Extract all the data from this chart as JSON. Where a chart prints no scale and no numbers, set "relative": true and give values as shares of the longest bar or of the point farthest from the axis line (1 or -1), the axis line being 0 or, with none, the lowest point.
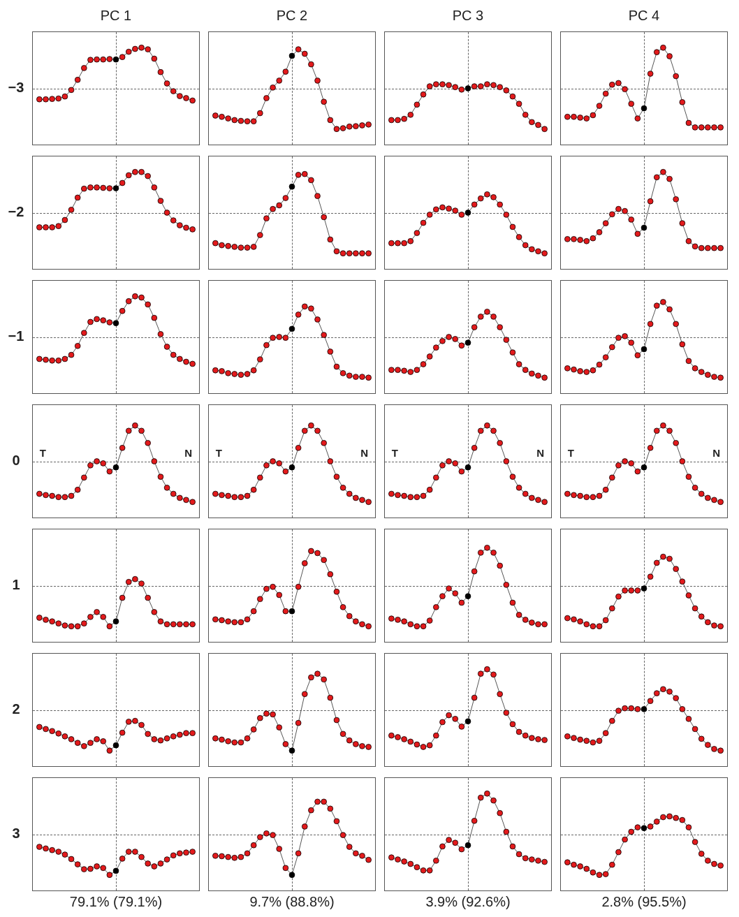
{
  "chart_data": [
    {
      "type": "line",
      "title": "PC 1",
      "ylabel": "−3",
      "relative": true,
      "marker": "circle",
      "line_style": "solid",
      "categories": [
        null,
        null,
        null,
        null,
        null,
        null,
        null,
        null,
        null,
        null,
        null,
        null,
        null,
        null,
        null,
        null,
        null,
        null,
        null,
        null,
        null,
        null,
        null,
        null,
        null
      ],
      "color": "#555555",
      "colors": [
        "#e31a1c",
        "#e31a1c",
        "#e31a1c",
        "#e31a1c",
        "#e31a1c",
        "#e31a1c",
        "#e31a1c",
        "#e31a1c",
        "#e31a1c",
        "#e31a1c",
        "#e31a1c",
        "#e31a1c",
        "#000000",
        "#e31a1c",
        "#e31a1c",
        "#e31a1c",
        "#e31a1c",
        "#e31a1c",
        "#e31a1c",
        "#e31a1c",
        "#e31a1c",
        "#e31a1c",
        "#e31a1c",
        "#e31a1c",
        "#e31a1c"
      ],
      "values": [
        -0.27,
        -0.27,
        -0.26,
        -0.25,
        -0.2,
        -0.04,
        0.21,
        0.5,
        0.7,
        0.71,
        0.71,
        0.72,
        0.71,
        0.77,
        0.9,
        0.97,
        1,
        0.96,
        0.73,
        0.4,
        0.12,
        -0.07,
        -0.19,
        -0.24,
        -0.3
      ]
    },
    {
      "type": "line",
      "title": "PC 2",
      "relative": true,
      "marker": "circle",
      "line_style": "solid",
      "categories": [
        null,
        null,
        null,
        null,
        null,
        null,
        null,
        null,
        null,
        null,
        null,
        null,
        null,
        null,
        null,
        null,
        null,
        null,
        null,
        null,
        null,
        null,
        null,
        null,
        null
      ],
      "color": "#555555",
      "colors": [
        "#e31a1c",
        "#e31a1c",
        "#e31a1c",
        "#e31a1c",
        "#e31a1c",
        "#e31a1c",
        "#e31a1c",
        "#e31a1c",
        "#e31a1c",
        "#e31a1c",
        "#e31a1c",
        "#e31a1c",
        "#000000",
        "#e31a1c",
        "#e31a1c",
        "#e31a1c",
        "#e31a1c",
        "#e31a1c",
        "#e31a1c",
        "#e31a1c",
        "#e31a1c",
        "#e31a1c",
        "#e31a1c",
        "#e31a1c",
        "#e31a1c"
      ],
      "values": [
        -0.67,
        -0.7,
        -0.74,
        -0.78,
        -0.8,
        -0.81,
        -0.81,
        -0.61,
        -0.24,
        0.02,
        0.19,
        0.41,
        0.8,
        0.96,
        0.85,
        0.59,
        0.19,
        -0.33,
        -0.78,
        -1,
        -0.98,
        -0.94,
        -0.93,
        -0.91,
        -0.89
      ]
    },
    {
      "type": "line",
      "title": "PC 3",
      "relative": true,
      "marker": "circle",
      "line_style": "solid",
      "categories": [
        null,
        null,
        null,
        null,
        null,
        null,
        null,
        null,
        null,
        null,
        null,
        null,
        null,
        null,
        null,
        null,
        null,
        null,
        null,
        null,
        null,
        null,
        null,
        null,
        null
      ],
      "color": "#555555",
      "colors": [
        "#e31a1c",
        "#e31a1c",
        "#e31a1c",
        "#e31a1c",
        "#e31a1c",
        "#e31a1c",
        "#e31a1c",
        "#e31a1c",
        "#e31a1c",
        "#e31a1c",
        "#e31a1c",
        "#e31a1c",
        "#000000",
        "#e31a1c",
        "#e31a1c",
        "#e31a1c",
        "#e31a1c",
        "#e31a1c",
        "#e31a1c",
        "#e31a1c",
        "#e31a1c",
        "#e31a1c",
        "#e31a1c",
        "#e31a1c",
        "#e31a1c"
      ],
      "values": [
        -0.78,
        -0.78,
        -0.75,
        -0.65,
        -0.4,
        -0.15,
        0.05,
        0.1,
        0.1,
        0.08,
        0.03,
        -0.03,
        0,
        0.05,
        0.05,
        0.1,
        0.08,
        0.03,
        -0.05,
        -0.2,
        -0.38,
        -0.65,
        -0.83,
        -0.9,
        -1
      ]
    },
    {
      "type": "line",
      "title": "PC 4",
      "relative": true,
      "marker": "circle",
      "line_style": "solid",
      "categories": [
        null,
        null,
        null,
        null,
        null,
        null,
        null,
        null,
        null,
        null,
        null,
        null,
        null,
        null,
        null,
        null,
        null,
        null,
        null,
        null,
        null,
        null,
        null,
        null,
        null
      ],
      "color": "#555555",
      "colors": [
        "#e31a1c",
        "#e31a1c",
        "#e31a1c",
        "#e31a1c",
        "#e31a1c",
        "#e31a1c",
        "#e31a1c",
        "#e31a1c",
        "#e31a1c",
        "#e31a1c",
        "#e31a1c",
        "#e31a1c",
        "#000000",
        "#e31a1c",
        "#e31a1c",
        "#e31a1c",
        "#e31a1c",
        "#e31a1c",
        "#e31a1c",
        "#e31a1c",
        "#e31a1c",
        "#e31a1c",
        "#e31a1c",
        "#e31a1c",
        "#e31a1c"
      ],
      "values": [
        -0.7,
        -0.7,
        -0.72,
        -0.74,
        -0.66,
        -0.43,
        -0.13,
        0.09,
        0.13,
        -0.02,
        -0.38,
        -0.74,
        -0.49,
        0.36,
        0.89,
        1,
        0.79,
        0.3,
        -0.34,
        -0.85,
        -0.96,
        -0.96,
        -0.96,
        -0.96,
        -0.96
      ]
    },
    {
      "type": "line",
      "ylabel": "−2",
      "relative": true,
      "marker": "circle",
      "line_style": "solid",
      "categories": [
        null,
        null,
        null,
        null,
        null,
        null,
        null,
        null,
        null,
        null,
        null,
        null,
        null,
        null,
        null,
        null,
        null,
        null,
        null,
        null,
        null,
        null,
        null,
        null,
        null
      ],
      "color": "#555555",
      "colors": [
        "#e31a1c",
        "#e31a1c",
        "#e31a1c",
        "#e31a1c",
        "#e31a1c",
        "#e31a1c",
        "#e31a1c",
        "#e31a1c",
        "#e31a1c",
        "#e31a1c",
        "#e31a1c",
        "#e31a1c",
        "#000000",
        "#e31a1c",
        "#e31a1c",
        "#e31a1c",
        "#e31a1c",
        "#e31a1c",
        "#e31a1c",
        "#e31a1c",
        "#e31a1c",
        "#e31a1c",
        "#e31a1c",
        "#e31a1c",
        "#e31a1c"
      ],
      "values": [
        -0.36,
        -0.36,
        -0.36,
        -0.33,
        -0.18,
        0.07,
        0.37,
        0.59,
        0.62,
        0.62,
        0.61,
        0.6,
        0.6,
        0.73,
        0.92,
        1,
        1,
        0.9,
        0.62,
        0.29,
        0,
        -0.19,
        -0.31,
        -0.37,
        -0.41
      ]
    },
    {
      "type": "line",
      "relative": true,
      "marker": "circle",
      "line_style": "solid",
      "categories": [
        null,
        null,
        null,
        null,
        null,
        null,
        null,
        null,
        null,
        null,
        null,
        null,
        null,
        null,
        null,
        null,
        null,
        null,
        null,
        null,
        null,
        null,
        null,
        null,
        null
      ],
      "color": "#555555",
      "colors": [
        "#e31a1c",
        "#e31a1c",
        "#e31a1c",
        "#e31a1c",
        "#e31a1c",
        "#e31a1c",
        "#e31a1c",
        "#e31a1c",
        "#e31a1c",
        "#e31a1c",
        "#e31a1c",
        "#e31a1c",
        "#000000",
        "#e31a1c",
        "#e31a1c",
        "#e31a1c",
        "#e31a1c",
        "#e31a1c",
        "#e31a1c",
        "#e31a1c",
        "#e31a1c",
        "#e31a1c",
        "#e31a1c",
        "#e31a1c",
        "#e31a1c"
      ],
      "values": [
        -0.75,
        -0.8,
        -0.82,
        -0.84,
        -0.86,
        -0.86,
        -0.84,
        -0.55,
        -0.14,
        0.09,
        0.18,
        0.36,
        0.64,
        0.93,
        0.95,
        0.8,
        0.41,
        -0.11,
        -0.66,
        -0.95,
        -1,
        -1,
        -1,
        -1,
        -1
      ]
    },
    {
      "type": "line",
      "relative": true,
      "marker": "circle",
      "line_style": "solid",
      "categories": [
        null,
        null,
        null,
        null,
        null,
        null,
        null,
        null,
        null,
        null,
        null,
        null,
        null,
        null,
        null,
        null,
        null,
        null,
        null,
        null,
        null,
        null,
        null,
        null,
        null
      ],
      "color": "#555555",
      "colors": [
        "#e31a1c",
        "#e31a1c",
        "#e31a1c",
        "#e31a1c",
        "#e31a1c",
        "#e31a1c",
        "#e31a1c",
        "#e31a1c",
        "#e31a1c",
        "#e31a1c",
        "#e31a1c",
        "#e31a1c",
        "#000000",
        "#e31a1c",
        "#e31a1c",
        "#e31a1c",
        "#e31a1c",
        "#e31a1c",
        "#e31a1c",
        "#e31a1c",
        "#e31a1c",
        "#e31a1c",
        "#e31a1c",
        "#e31a1c",
        "#e31a1c"
      ],
      "values": [
        -0.75,
        -0.75,
        -0.75,
        -0.7,
        -0.5,
        -0.25,
        -0.05,
        0.08,
        0.13,
        0.1,
        0.05,
        -0.05,
        0,
        0.2,
        0.35,
        0.45,
        0.38,
        0.2,
        -0.05,
        -0.35,
        -0.6,
        -0.8,
        -0.9,
        -0.95,
        -1
      ]
    },
    {
      "type": "line",
      "relative": true,
      "marker": "circle",
      "line_style": "solid",
      "categories": [
        null,
        null,
        null,
        null,
        null,
        null,
        null,
        null,
        null,
        null,
        null,
        null,
        null,
        null,
        null,
        null,
        null,
        null,
        null,
        null,
        null,
        null,
        null,
        null,
        null
      ],
      "color": "#555555",
      "colors": [
        "#e31a1c",
        "#e31a1c",
        "#e31a1c",
        "#e31a1c",
        "#e31a1c",
        "#e31a1c",
        "#e31a1c",
        "#e31a1c",
        "#e31a1c",
        "#e31a1c",
        "#e31a1c",
        "#e31a1c",
        "#000000",
        "#e31a1c",
        "#e31a1c",
        "#e31a1c",
        "#e31a1c",
        "#e31a1c",
        "#e31a1c",
        "#e31a1c",
        "#e31a1c",
        "#e31a1c",
        "#e31a1c",
        "#e31a1c",
        "#e31a1c"
      ],
      "values": [
        -0.65,
        -0.65,
        -0.67,
        -0.7,
        -0.63,
        -0.48,
        -0.26,
        -0.04,
        0.09,
        0.04,
        -0.17,
        -0.52,
        -0.37,
        0.28,
        0.87,
        1,
        0.83,
        0.33,
        -0.26,
        -0.7,
        -0.83,
        -0.87,
        -0.87,
        -0.87,
        -0.87
      ]
    },
    {
      "type": "line",
      "ylabel": "−1",
      "relative": true,
      "marker": "circle",
      "line_style": "solid",
      "categories": [
        null,
        null,
        null,
        null,
        null,
        null,
        null,
        null,
        null,
        null,
        null,
        null,
        null,
        null,
        null,
        null,
        null,
        null,
        null,
        null,
        null,
        null,
        null,
        null,
        null
      ],
      "color": "#555555",
      "colors": [
        "#e31a1c",
        "#e31a1c",
        "#e31a1c",
        "#e31a1c",
        "#e31a1c",
        "#e31a1c",
        "#e31a1c",
        "#e31a1c",
        "#e31a1c",
        "#e31a1c",
        "#e31a1c",
        "#e31a1c",
        "#000000",
        "#e31a1c",
        "#e31a1c",
        "#e31a1c",
        "#e31a1c",
        "#e31a1c",
        "#e31a1c",
        "#e31a1c",
        "#e31a1c",
        "#e31a1c",
        "#e31a1c",
        "#e31a1c",
        "#e31a1c"
      ],
      "values": [
        -0.54,
        -0.56,
        -0.58,
        -0.58,
        -0.54,
        -0.44,
        -0.22,
        0.1,
        0.37,
        0.44,
        0.41,
        0.36,
        0.34,
        0.64,
        0.88,
        1,
        0.97,
        0.8,
        0.47,
        0.07,
        -0.24,
        -0.44,
        -0.54,
        -0.61,
        -0.66
      ]
    },
    {
      "type": "line",
      "relative": true,
      "marker": "circle",
      "line_style": "solid",
      "categories": [
        null,
        null,
        null,
        null,
        null,
        null,
        null,
        null,
        null,
        null,
        null,
        null,
        null,
        null,
        null,
        null,
        null,
        null,
        null,
        null,
        null,
        null,
        null,
        null,
        null
      ],
      "color": "#555555",
      "colors": [
        "#e31a1c",
        "#e31a1c",
        "#e31a1c",
        "#e31a1c",
        "#e31a1c",
        "#e31a1c",
        "#e31a1c",
        "#e31a1c",
        "#e31a1c",
        "#e31a1c",
        "#e31a1c",
        "#e31a1c",
        "#000000",
        "#e31a1c",
        "#e31a1c",
        "#e31a1c",
        "#e31a1c",
        "#e31a1c",
        "#e31a1c",
        "#e31a1c",
        "#e31a1c",
        "#e31a1c",
        "#e31a1c",
        "#e31a1c",
        "#e31a1c"
      ],
      "values": [
        -0.82,
        -0.84,
        -0.89,
        -0.91,
        -0.93,
        -0.91,
        -0.82,
        -0.55,
        -0.2,
        -0.02,
        0,
        -0.02,
        0.2,
        0.55,
        0.75,
        0.7,
        0.43,
        0.05,
        -0.36,
        -0.73,
        -0.89,
        -0.95,
        -0.98,
        -0.98,
        -1
      ]
    },
    {
      "type": "line",
      "relative": true,
      "marker": "circle",
      "line_style": "solid",
      "categories": [
        null,
        null,
        null,
        null,
        null,
        null,
        null,
        null,
        null,
        null,
        null,
        null,
        null,
        null,
        null,
        null,
        null,
        null,
        null,
        null,
        null,
        null,
        null,
        null,
        null
      ],
      "color": "#555555",
      "colors": [
        "#e31a1c",
        "#e31a1c",
        "#e31a1c",
        "#e31a1c",
        "#e31a1c",
        "#e31a1c",
        "#e31a1c",
        "#e31a1c",
        "#e31a1c",
        "#e31a1c",
        "#e31a1c",
        "#e31a1c",
        "#000000",
        "#e31a1c",
        "#e31a1c",
        "#e31a1c",
        "#e31a1c",
        "#e31a1c",
        "#e31a1c",
        "#e31a1c",
        "#e31a1c",
        "#e31a1c",
        "#e31a1c",
        "#e31a1c",
        "#e31a1c"
      ],
      "values": [
        -0.81,
        -0.81,
        -0.83,
        -0.86,
        -0.81,
        -0.67,
        -0.48,
        -0.26,
        -0.1,
        0,
        -0.05,
        -0.21,
        -0.14,
        0.24,
        0.5,
        0.62,
        0.5,
        0.24,
        -0.07,
        -0.38,
        -0.67,
        -0.81,
        -0.9,
        -0.95,
        -1
      ]
    },
    {
      "type": "line",
      "relative": true,
      "marker": "circle",
      "line_style": "solid",
      "categories": [
        null,
        null,
        null,
        null,
        null,
        null,
        null,
        null,
        null,
        null,
        null,
        null,
        null,
        null,
        null,
        null,
        null,
        null,
        null,
        null,
        null,
        null,
        null,
        null,
        null
      ],
      "color": "#555555",
      "colors": [
        "#e31a1c",
        "#e31a1c",
        "#e31a1c",
        "#e31a1c",
        "#e31a1c",
        "#e31a1c",
        "#e31a1c",
        "#e31a1c",
        "#e31a1c",
        "#e31a1c",
        "#e31a1c",
        "#e31a1c",
        "#000000",
        "#e31a1c",
        "#e31a1c",
        "#e31a1c",
        "#e31a1c",
        "#e31a1c",
        "#e31a1c",
        "#e31a1c",
        "#e31a1c",
        "#e31a1c",
        "#e31a1c",
        "#e31a1c",
        "#e31a1c"
      ],
      "values": [
        -0.77,
        -0.8,
        -0.84,
        -0.86,
        -0.82,
        -0.68,
        -0.5,
        -0.25,
        -0.02,
        0.02,
        -0.14,
        -0.45,
        -0.3,
        0.32,
        0.77,
        0.86,
        0.68,
        0.32,
        -0.18,
        -0.59,
        -0.77,
        -0.86,
        -0.93,
        -0.98,
        -1
      ]
    },
    {
      "type": "line",
      "ylabel": "0",
      "annotations": [
        "T",
        "N"
      ],
      "relative": true,
      "marker": "circle",
      "line_style": "solid",
      "categories": [
        null,
        null,
        null,
        null,
        null,
        null,
        null,
        null,
        null,
        null,
        null,
        null,
        null,
        null,
        null,
        null,
        null,
        null,
        null,
        null,
        null,
        null,
        null,
        null,
        null
      ],
      "color": "#555555",
      "colors": [
        "#e31a1c",
        "#e31a1c",
        "#e31a1c",
        "#e31a1c",
        "#e31a1c",
        "#e31a1c",
        "#e31a1c",
        "#e31a1c",
        "#e31a1c",
        "#e31a1c",
        "#e31a1c",
        "#e31a1c",
        "#000000",
        "#e31a1c",
        "#e31a1c",
        "#e31a1c",
        "#e31a1c",
        "#e31a1c",
        "#e31a1c",
        "#e31a1c",
        "#e31a1c",
        "#e31a1c",
        "#e31a1c",
        "#e31a1c",
        "#e31a1c"
      ],
      "values": [
        -0.8,
        -0.83,
        -0.85,
        -0.88,
        -0.88,
        -0.85,
        -0.7,
        -0.4,
        -0.1,
        0,
        -0.05,
        -0.25,
        -0.15,
        0.33,
        0.75,
        0.88,
        0.75,
        0.45,
        0,
        -0.38,
        -0.65,
        -0.8,
        -0.9,
        -0.95,
        -1
      ]
    },
    {
      "type": "line",
      "annotations": [
        "T",
        "N"
      ],
      "relative": true,
      "marker": "circle",
      "line_style": "solid",
      "categories": [
        null,
        null,
        null,
        null,
        null,
        null,
        null,
        null,
        null,
        null,
        null,
        null,
        null,
        null,
        null,
        null,
        null,
        null,
        null,
        null,
        null,
        null,
        null,
        null,
        null
      ],
      "color": "#555555",
      "colors": [
        "#e31a1c",
        "#e31a1c",
        "#e31a1c",
        "#e31a1c",
        "#e31a1c",
        "#e31a1c",
        "#e31a1c",
        "#e31a1c",
        "#e31a1c",
        "#e31a1c",
        "#e31a1c",
        "#e31a1c",
        "#000000",
        "#e31a1c",
        "#e31a1c",
        "#e31a1c",
        "#e31a1c",
        "#e31a1c",
        "#e31a1c",
        "#e31a1c",
        "#e31a1c",
        "#e31a1c",
        "#e31a1c",
        "#e31a1c",
        "#e31a1c"
      ],
      "values": [
        -0.8,
        -0.83,
        -0.85,
        -0.88,
        -0.88,
        -0.85,
        -0.7,
        -0.4,
        -0.1,
        0,
        -0.05,
        -0.25,
        -0.15,
        0.33,
        0.75,
        0.88,
        0.75,
        0.45,
        0,
        -0.38,
        -0.65,
        -0.8,
        -0.9,
        -0.95,
        -1
      ]
    },
    {
      "type": "line",
      "annotations": [
        "T",
        "N"
      ],
      "relative": true,
      "marker": "circle",
      "line_style": "solid",
      "categories": [
        null,
        null,
        null,
        null,
        null,
        null,
        null,
        null,
        null,
        null,
        null,
        null,
        null,
        null,
        null,
        null,
        null,
        null,
        null,
        null,
        null,
        null,
        null,
        null,
        null
      ],
      "color": "#555555",
      "colors": [
        "#e31a1c",
        "#e31a1c",
        "#e31a1c",
        "#e31a1c",
        "#e31a1c",
        "#e31a1c",
        "#e31a1c",
        "#e31a1c",
        "#e31a1c",
        "#e31a1c",
        "#e31a1c",
        "#e31a1c",
        "#000000",
        "#e31a1c",
        "#e31a1c",
        "#e31a1c",
        "#e31a1c",
        "#e31a1c",
        "#e31a1c",
        "#e31a1c",
        "#e31a1c",
        "#e31a1c",
        "#e31a1c",
        "#e31a1c",
        "#e31a1c"
      ],
      "values": [
        -0.8,
        -0.83,
        -0.85,
        -0.88,
        -0.88,
        -0.85,
        -0.7,
        -0.4,
        -0.1,
        0,
        -0.05,
        -0.25,
        -0.15,
        0.33,
        0.75,
        0.88,
        0.75,
        0.45,
        0,
        -0.38,
        -0.65,
        -0.8,
        -0.9,
        -0.95,
        -1
      ]
    },
    {
      "type": "line",
      "annotations": [
        "T",
        "N"
      ],
      "relative": true,
      "marker": "circle",
      "line_style": "solid",
      "categories": [
        null,
        null,
        null,
        null,
        null,
        null,
        null,
        null,
        null,
        null,
        null,
        null,
        null,
        null,
        null,
        null,
        null,
        null,
        null,
        null,
        null,
        null,
        null,
        null,
        null
      ],
      "color": "#555555",
      "colors": [
        "#e31a1c",
        "#e31a1c",
        "#e31a1c",
        "#e31a1c",
        "#e31a1c",
        "#e31a1c",
        "#e31a1c",
        "#e31a1c",
        "#e31a1c",
        "#e31a1c",
        "#e31a1c",
        "#e31a1c",
        "#000000",
        "#e31a1c",
        "#e31a1c",
        "#e31a1c",
        "#e31a1c",
        "#e31a1c",
        "#e31a1c",
        "#e31a1c",
        "#e31a1c",
        "#e31a1c",
        "#e31a1c",
        "#e31a1c",
        "#e31a1c"
      ],
      "values": [
        -0.8,
        -0.83,
        -0.85,
        -0.88,
        -0.88,
        -0.85,
        -0.7,
        -0.4,
        -0.1,
        0,
        -0.05,
        -0.25,
        -0.15,
        0.33,
        0.75,
        0.88,
        0.75,
        0.45,
        0,
        -0.38,
        -0.65,
        -0.8,
        -0.9,
        -0.95,
        -1
      ]
    },
    {
      "type": "line",
      "ylabel": "1",
      "relative": true,
      "marker": "circle",
      "line_style": "solid",
      "categories": [
        null,
        null,
        null,
        null,
        null,
        null,
        null,
        null,
        null,
        null,
        null,
        null,
        null,
        null,
        null,
        null,
        null,
        null,
        null,
        null,
        null,
        null,
        null,
        null,
        null
      ],
      "color": "#555555",
      "colors": [
        "#e31a1c",
        "#e31a1c",
        "#e31a1c",
        "#e31a1c",
        "#e31a1c",
        "#e31a1c",
        "#e31a1c",
        "#e31a1c",
        "#e31a1c",
        "#e31a1c",
        "#e31a1c",
        "#e31a1c",
        "#000000",
        "#e31a1c",
        "#e31a1c",
        "#e31a1c",
        "#e31a1c",
        "#e31a1c",
        "#e31a1c",
        "#e31a1c",
        "#e31a1c",
        "#e31a1c",
        "#e31a1c",
        "#e31a1c",
        "#e31a1c"
      ],
      "values": [
        -0.79,
        -0.84,
        -0.88,
        -0.93,
        -0.98,
        -1,
        -1,
        -0.93,
        -0.77,
        -0.65,
        -0.77,
        -1,
        -0.88,
        -0.3,
        0.09,
        0.16,
        0.05,
        -0.3,
        -0.65,
        -0.88,
        -0.95,
        -0.95,
        -0.95,
        -0.95,
        -0.95
      ]
    },
    {
      "type": "line",
      "relative": true,
      "marker": "circle",
      "line_style": "solid",
      "categories": [
        null,
        null,
        null,
        null,
        null,
        null,
        null,
        null,
        null,
        null,
        null,
        null,
        null,
        null,
        null,
        null,
        null,
        null,
        null,
        null,
        null,
        null,
        null,
        null,
        null
      ],
      "color": "#555555",
      "colors": [
        "#e31a1c",
        "#e31a1c",
        "#e31a1c",
        "#e31a1c",
        "#e31a1c",
        "#e31a1c",
        "#e31a1c",
        "#e31a1c",
        "#e31a1c",
        "#e31a1c",
        "#e31a1c",
        "#e31a1c",
        "#000000",
        "#e31a1c",
        "#e31a1c",
        "#e31a1c",
        "#e31a1c",
        "#e31a1c",
        "#e31a1c",
        "#e31a1c",
        "#e31a1c",
        "#e31a1c",
        "#e31a1c",
        "#e31a1c",
        "#e31a1c"
      ],
      "values": [
        -0.83,
        -0.85,
        -0.88,
        -0.9,
        -0.9,
        -0.83,
        -0.63,
        -0.33,
        -0.08,
        -0.03,
        -0.23,
        -0.63,
        -0.63,
        -0.03,
        0.55,
        0.85,
        0.8,
        0.63,
        0.28,
        -0.15,
        -0.53,
        -0.75,
        -0.88,
        -0.95,
        -1
      ]
    },
    {
      "type": "line",
      "relative": true,
      "marker": "circle",
      "line_style": "solid",
      "categories": [
        null,
        null,
        null,
        null,
        null,
        null,
        null,
        null,
        null,
        null,
        null,
        null,
        null,
        null,
        null,
        null,
        null,
        null,
        null,
        null,
        null,
        null,
        null,
        null,
        null
      ],
      "color": "#555555",
      "colors": [
        "#e31a1c",
        "#e31a1c",
        "#e31a1c",
        "#e31a1c",
        "#e31a1c",
        "#e31a1c",
        "#e31a1c",
        "#e31a1c",
        "#e31a1c",
        "#e31a1c",
        "#e31a1c",
        "#e31a1c",
        "#000000",
        "#e31a1c",
        "#e31a1c",
        "#e31a1c",
        "#e31a1c",
        "#e31a1c",
        "#e31a1c",
        "#e31a1c",
        "#e31a1c",
        "#e31a1c",
        "#e31a1c",
        "#e31a1c",
        "#e31a1c"
      ],
      "values": [
        -0.81,
        -0.84,
        -0.88,
        -0.95,
        -1,
        -1,
        -0.86,
        -0.53,
        -0.26,
        -0.07,
        -0.19,
        -0.42,
        -0.26,
        0.35,
        0.81,
        0.93,
        0.81,
        0.49,
        0.02,
        -0.42,
        -0.72,
        -0.84,
        -0.91,
        -0.95,
        -0.95
      ]
    },
    {
      "type": "line",
      "relative": true,
      "marker": "circle",
      "line_style": "solid",
      "categories": [
        null,
        null,
        null,
        null,
        null,
        null,
        null,
        null,
        null,
        null,
        null,
        null,
        null,
        null,
        null,
        null,
        null,
        null,
        null,
        null,
        null,
        null,
        null,
        null,
        null
      ],
      "color": "#555555",
      "colors": [
        "#e31a1c",
        "#e31a1c",
        "#e31a1c",
        "#e31a1c",
        "#e31a1c",
        "#e31a1c",
        "#e31a1c",
        "#e31a1c",
        "#e31a1c",
        "#e31a1c",
        "#e31a1c",
        "#e31a1c",
        "#000000",
        "#e31a1c",
        "#e31a1c",
        "#e31a1c",
        "#e31a1c",
        "#e31a1c",
        "#e31a1c",
        "#e31a1c",
        "#e31a1c",
        "#e31a1c",
        "#e31a1c",
        "#e31a1c",
        "#e31a1c"
      ],
      "values": [
        -0.8,
        -0.83,
        -0.88,
        -0.95,
        -1,
        -1,
        -0.85,
        -0.56,
        -0.27,
        -0.12,
        -0.12,
        -0.12,
        -0.07,
        0.22,
        0.56,
        0.71,
        0.66,
        0.41,
        0.1,
        -0.24,
        -0.56,
        -0.76,
        -0.9,
        -0.98,
        -1
      ]
    },
    {
      "type": "line",
      "ylabel": "2",
      "relative": true,
      "marker": "circle",
      "line_style": "solid",
      "categories": [
        null,
        null,
        null,
        null,
        null,
        null,
        null,
        null,
        null,
        null,
        null,
        null,
        null,
        null,
        null,
        null,
        null,
        null,
        null,
        null,
        null,
        null,
        null,
        null,
        null
      ],
      "color": "#555555",
      "colors": [
        "#e31a1c",
        "#e31a1c",
        "#e31a1c",
        "#e31a1c",
        "#e31a1c",
        "#e31a1c",
        "#e31a1c",
        "#e31a1c",
        "#e31a1c",
        "#e31a1c",
        "#e31a1c",
        "#e31a1c",
        "#000000",
        "#e31a1c",
        "#e31a1c",
        "#e31a1c",
        "#e31a1c",
        "#e31a1c",
        "#e31a1c",
        "#e31a1c",
        "#e31a1c",
        "#e31a1c",
        "#e31a1c",
        "#e31a1c",
        "#e31a1c"
      ],
      "values": [
        -0.42,
        -0.47,
        -0.52,
        -0.58,
        -0.65,
        -0.72,
        -0.81,
        -0.89,
        -0.81,
        -0.72,
        -0.77,
        -1,
        -0.87,
        -0.56,
        -0.29,
        -0.27,
        -0.37,
        -0.59,
        -0.72,
        -0.75,
        -0.7,
        -0.65,
        -0.61,
        -0.57,
        -0.57
      ]
    },
    {
      "type": "line",
      "relative": true,
      "marker": "circle",
      "line_style": "solid",
      "categories": [
        null,
        null,
        null,
        null,
        null,
        null,
        null,
        null,
        null,
        null,
        null,
        null,
        null,
        null,
        null,
        null,
        null,
        null,
        null,
        null,
        null,
        null,
        null,
        null,
        null
      ],
      "color": "#555555",
      "colors": [
        "#e31a1c",
        "#e31a1c",
        "#e31a1c",
        "#e31a1c",
        "#e31a1c",
        "#e31a1c",
        "#e31a1c",
        "#e31a1c",
        "#e31a1c",
        "#e31a1c",
        "#e31a1c",
        "#e31a1c",
        "#000000",
        "#e31a1c",
        "#e31a1c",
        "#e31a1c",
        "#e31a1c",
        "#e31a1c",
        "#e31a1c",
        "#e31a1c",
        "#e31a1c",
        "#e31a1c",
        "#e31a1c",
        "#e31a1c",
        "#e31a1c"
      ],
      "values": [
        -0.7,
        -0.73,
        -0.77,
        -0.8,
        -0.8,
        -0.7,
        -0.48,
        -0.2,
        -0.09,
        -0.11,
        -0.43,
        -0.84,
        -1,
        -0.32,
        0.39,
        0.8,
        0.89,
        0.75,
        0.3,
        -0.25,
        -0.59,
        -0.75,
        -0.84,
        -0.89,
        -0.91
      ]
    },
    {
      "type": "line",
      "relative": true,
      "marker": "circle",
      "line_style": "solid",
      "categories": [
        null,
        null,
        null,
        null,
        null,
        null,
        null,
        null,
        null,
        null,
        null,
        null,
        null,
        null,
        null,
        null,
        null,
        null,
        null,
        null,
        null,
        null,
        null,
        null,
        null
      ],
      "color": "#555555",
      "colors": [
        "#e31a1c",
        "#e31a1c",
        "#e31a1c",
        "#e31a1c",
        "#e31a1c",
        "#e31a1c",
        "#e31a1c",
        "#e31a1c",
        "#e31a1c",
        "#e31a1c",
        "#e31a1c",
        "#e31a1c",
        "#000000",
        "#e31a1c",
        "#e31a1c",
        "#e31a1c",
        "#e31a1c",
        "#e31a1c",
        "#e31a1c",
        "#e31a1c",
        "#e31a1c",
        "#e31a1c",
        "#e31a1c",
        "#e31a1c",
        "#e31a1c"
      ],
      "values": [
        -0.63,
        -0.67,
        -0.72,
        -0.78,
        -0.85,
        -0.91,
        -0.87,
        -0.63,
        -0.3,
        -0.13,
        -0.22,
        -0.41,
        -0.28,
        0.3,
        0.89,
        1,
        0.87,
        0.39,
        -0.07,
        -0.35,
        -0.54,
        -0.63,
        -0.69,
        -0.72,
        -0.74
      ]
    },
    {
      "type": "line",
      "relative": true,
      "marker": "circle",
      "line_style": "solid",
      "categories": [
        null,
        null,
        null,
        null,
        null,
        null,
        null,
        null,
        null,
        null,
        null,
        null,
        null,
        null,
        null,
        null,
        null,
        null,
        null,
        null,
        null,
        null,
        null,
        null,
        null
      ],
      "color": "#555555",
      "colors": [
        "#e31a1c",
        "#e31a1c",
        "#e31a1c",
        "#e31a1c",
        "#e31a1c",
        "#e31a1c",
        "#e31a1c",
        "#e31a1c",
        "#e31a1c",
        "#e31a1c",
        "#e31a1c",
        "#e31a1c",
        "#000000",
        "#e31a1c",
        "#e31a1c",
        "#e31a1c",
        "#e31a1c",
        "#e31a1c",
        "#e31a1c",
        "#e31a1c",
        "#e31a1c",
        "#e31a1c",
        "#e31a1c",
        "#e31a1c",
        "#e31a1c"
      ],
      "values": [
        -0.65,
        -0.69,
        -0.73,
        -0.76,
        -0.8,
        -0.76,
        -0.57,
        -0.27,
        -0.02,
        0.04,
        0.04,
        0.02,
        0.02,
        0.22,
        0.41,
        0.51,
        0.45,
        0.29,
        0.02,
        -0.22,
        -0.47,
        -0.71,
        -0.86,
        -0.96,
        -1
      ]
    },
    {
      "type": "line",
      "ylabel": "3",
      "xlabel": "79.1% (79.1%)",
      "relative": true,
      "marker": "circle",
      "line_style": "solid",
      "categories": [
        null,
        null,
        null,
        null,
        null,
        null,
        null,
        null,
        null,
        null,
        null,
        null,
        null,
        null,
        null,
        null,
        null,
        null,
        null,
        null,
        null,
        null,
        null,
        null,
        null
      ],
      "color": "#555555",
      "colors": [
        "#e31a1c",
        "#e31a1c",
        "#e31a1c",
        "#e31a1c",
        "#e31a1c",
        "#e31a1c",
        "#e31a1c",
        "#e31a1c",
        "#e31a1c",
        "#e31a1c",
        "#e31a1c",
        "#e31a1c",
        "#000000",
        "#e31a1c",
        "#e31a1c",
        "#e31a1c",
        "#e31a1c",
        "#e31a1c",
        "#e31a1c",
        "#e31a1c",
        "#e31a1c",
        "#e31a1c",
        "#e31a1c",
        "#e31a1c",
        "#e31a1c"
      ],
      "values": [
        -0.31,
        -0.35,
        -0.39,
        -0.43,
        -0.5,
        -0.61,
        -0.74,
        -0.86,
        -0.85,
        -0.79,
        -0.83,
        -1,
        -0.9,
        -0.6,
        -0.43,
        -0.43,
        -0.56,
        -0.72,
        -0.79,
        -0.72,
        -0.62,
        -0.52,
        -0.47,
        -0.45,
        -0.43
      ]
    },
    {
      "type": "line",
      "xlabel": "9.7% (88.8%)",
      "relative": true,
      "marker": "circle",
      "line_style": "solid",
      "categories": [
        null,
        null,
        null,
        null,
        null,
        null,
        null,
        null,
        null,
        null,
        null,
        null,
        null,
        null,
        null,
        null,
        null,
        null,
        null,
        null,
        null,
        null,
        null,
        null,
        null
      ],
      "color": "#555555",
      "colors": [
        "#e31a1c",
        "#e31a1c",
        "#e31a1c",
        "#e31a1c",
        "#e31a1c",
        "#e31a1c",
        "#e31a1c",
        "#e31a1c",
        "#e31a1c",
        "#e31a1c",
        "#e31a1c",
        "#e31a1c",
        "#000000",
        "#e31a1c",
        "#e31a1c",
        "#e31a1c",
        "#e31a1c",
        "#e31a1c",
        "#e31a1c",
        "#e31a1c",
        "#e31a1c",
        "#e31a1c",
        "#e31a1c",
        "#e31a1c",
        "#e31a1c"
      ],
      "values": [
        -0.53,
        -0.54,
        -0.56,
        -0.58,
        -0.56,
        -0.47,
        -0.27,
        -0.07,
        0.02,
        -0.02,
        -0.36,
        -0.83,
        -1,
        -0.47,
        0.19,
        0.59,
        0.8,
        0.8,
        0.63,
        0.32,
        -0.02,
        -0.31,
        -0.47,
        -0.53,
        -0.63
      ]
    },
    {
      "type": "line",
      "xlabel": "3.9% (92.6%)",
      "relative": true,
      "marker": "circle",
      "line_style": "solid",
      "categories": [
        null,
        null,
        null,
        null,
        null,
        null,
        null,
        null,
        null,
        null,
        null,
        null,
        null,
        null,
        null,
        null,
        null,
        null,
        null,
        null,
        null,
        null,
        null,
        null,
        null
      ],
      "color": "#555555",
      "colors": [
        "#e31a1c",
        "#e31a1c",
        "#e31a1c",
        "#e31a1c",
        "#e31a1c",
        "#e31a1c",
        "#e31a1c",
        "#e31a1c",
        "#e31a1c",
        "#e31a1c",
        "#e31a1c",
        "#e31a1c",
        "#000000",
        "#e31a1c",
        "#e31a1c",
        "#e31a1c",
        "#e31a1c",
        "#e31a1c",
        "#e31a1c",
        "#e31a1c",
        "#e31a1c",
        "#e31a1c",
        "#e31a1c",
        "#e31a1c",
        "#e31a1c"
      ],
      "values": [
        -0.57,
        -0.62,
        -0.67,
        -0.73,
        -0.81,
        -0.89,
        -0.89,
        -0.65,
        -0.3,
        -0.14,
        -0.21,
        -0.37,
        -0.27,
        0.33,
        0.9,
        1,
        0.83,
        0.52,
        0.06,
        -0.3,
        -0.49,
        -0.59,
        -0.62,
        -0.65,
        -0.68
      ]
    },
    {
      "type": "line",
      "xlabel": "2.8% (95.5%)",
      "relative": true,
      "marker": "circle",
      "line_style": "solid",
      "categories": [
        null,
        null,
        null,
        null,
        null,
        null,
        null,
        null,
        null,
        null,
        null,
        null,
        null,
        null,
        null,
        null,
        null,
        null,
        null,
        null,
        null,
        null,
        null,
        null,
        null
      ],
      "color": "#555555",
      "colors": [
        "#e31a1c",
        "#e31a1c",
        "#e31a1c",
        "#e31a1c",
        "#e31a1c",
        "#e31a1c",
        "#e31a1c",
        "#e31a1c",
        "#e31a1c",
        "#e31a1c",
        "#e31a1c",
        "#e31a1c",
        "#000000",
        "#e31a1c",
        "#e31a1c",
        "#e31a1c",
        "#e31a1c",
        "#e31a1c",
        "#e31a1c",
        "#e31a1c",
        "#e31a1c",
        "#e31a1c",
        "#e31a1c",
        "#e31a1c",
        "#e31a1c"
      ],
      "values": [
        -0.69,
        -0.75,
        -0.79,
        -0.85,
        -0.94,
        -1,
        -0.98,
        -0.75,
        -0.44,
        -0.13,
        0.06,
        0.17,
        0.15,
        0.19,
        0.31,
        0.42,
        0.44,
        0.4,
        0.35,
        0.17,
        -0.19,
        -0.48,
        -0.65,
        -0.73,
        -0.77
      ]
    }
  ]
}
